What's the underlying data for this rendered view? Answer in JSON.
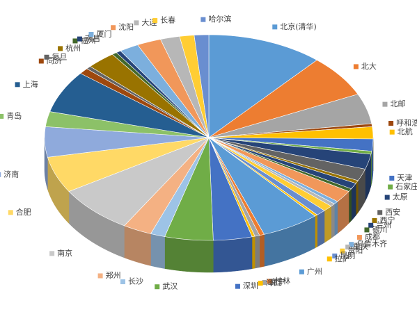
{
  "chart_data": {
    "type": "pie",
    "categories": [
      "北京(清华)",
      "北大",
      "北邮",
      "呼和浩特",
      "北航",
      "天津",
      "石家庄",
      "太原",
      "西安",
      "西宁",
      "兰州",
      "银川",
      "成都",
      "乌鲁木齐",
      "重庆",
      "贵阳",
      "昆明",
      "拉萨",
      "广州",
      "桂林",
      "南宁",
      "海口",
      "深圳",
      "武汉",
      "长沙",
      "郑州",
      "南京",
      "合肥",
      "济南",
      "青岛",
      "上海",
      "同济",
      "复旦",
      "杭州",
      "福州",
      "南昌",
      "厦门",
      "沈阳",
      "大连",
      "长春",
      "哈尔滨"
    ],
    "values": [
      12,
      7,
      5,
      0.5,
      2,
      2,
      0.5,
      2.5,
      2,
      0.5,
      1,
      0.5,
      2,
      0.5,
      0.5,
      1,
      1,
      0.3,
      6,
      0.5,
      0.5,
      0.3,
      4,
      5,
      1.5,
      3,
      8,
      6,
      5,
      2.5,
      7,
      1,
      0.5,
      3,
      0.5,
      0.5,
      2,
      2.5,
      2,
      1.5,
      1.5
    ],
    "colors": [
      "#5b9bd5",
      "#ed7d31",
      "#a5a5a5",
      "#9e480e",
      "#ffc000",
      "#4472c4",
      "#70ad47",
      "#264478",
      "#636363",
      "#997300",
      "#264478",
      "#43682b",
      "#f1975a",
      "#7cafdd",
      "#b7b7b7",
      "#ffcd33",
      "#698ed0",
      "#ffc000",
      "#5b9bd5",
      "#ed7d31",
      "#a5a5a5",
      "#ffc000",
      "#4472c4",
      "#70ad47",
      "#9dc3e6",
      "#f4b183",
      "#c9c9c9",
      "#ffd966",
      "#8faadc",
      "#8cc168",
      "#255e91",
      "#9e480e",
      "#636363",
      "#997300",
      "#43682b",
      "#264478",
      "#7cafdd",
      "#f1975a",
      "#b7b7b7",
      "#ffcd33",
      "#698ed0"
    ]
  }
}
